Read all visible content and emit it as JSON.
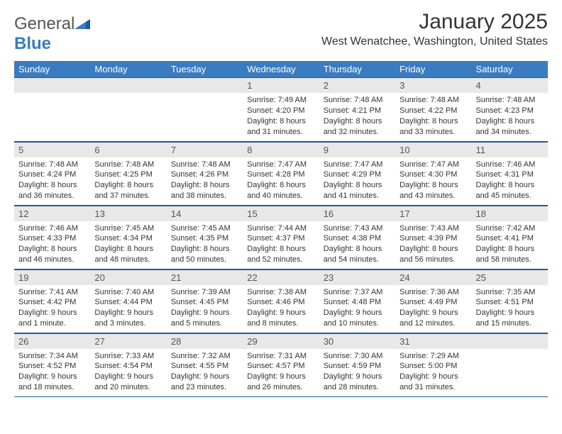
{
  "logo": {
    "text_gray": "General",
    "text_blue": "Blue"
  },
  "title": "January 2025",
  "location": "West Wenatchee, Washington, United States",
  "colors": {
    "header_bg": "#3b7bbf",
    "daynum_bg": "#e8e8e8",
    "rule": "#1e5a9a",
    "logo_blue": "#3b7bbf"
  },
  "weekdays": [
    "Sunday",
    "Monday",
    "Tuesday",
    "Wednesday",
    "Thursday",
    "Friday",
    "Saturday"
  ],
  "weeks": [
    [
      null,
      null,
      null,
      {
        "n": "1",
        "sr": "7:49 AM",
        "ss": "4:20 PM",
        "dl": "8 hours and 31 minutes."
      },
      {
        "n": "2",
        "sr": "7:48 AM",
        "ss": "4:21 PM",
        "dl": "8 hours and 32 minutes."
      },
      {
        "n": "3",
        "sr": "7:48 AM",
        "ss": "4:22 PM",
        "dl": "8 hours and 33 minutes."
      },
      {
        "n": "4",
        "sr": "7:48 AM",
        "ss": "4:23 PM",
        "dl": "8 hours and 34 minutes."
      }
    ],
    [
      {
        "n": "5",
        "sr": "7:48 AM",
        "ss": "4:24 PM",
        "dl": "8 hours and 36 minutes."
      },
      {
        "n": "6",
        "sr": "7:48 AM",
        "ss": "4:25 PM",
        "dl": "8 hours and 37 minutes."
      },
      {
        "n": "7",
        "sr": "7:48 AM",
        "ss": "4:26 PM",
        "dl": "8 hours and 38 minutes."
      },
      {
        "n": "8",
        "sr": "7:47 AM",
        "ss": "4:28 PM",
        "dl": "8 hours and 40 minutes."
      },
      {
        "n": "9",
        "sr": "7:47 AM",
        "ss": "4:29 PM",
        "dl": "8 hours and 41 minutes."
      },
      {
        "n": "10",
        "sr": "7:47 AM",
        "ss": "4:30 PM",
        "dl": "8 hours and 43 minutes."
      },
      {
        "n": "11",
        "sr": "7:46 AM",
        "ss": "4:31 PM",
        "dl": "8 hours and 45 minutes."
      }
    ],
    [
      {
        "n": "12",
        "sr": "7:46 AM",
        "ss": "4:33 PM",
        "dl": "8 hours and 46 minutes."
      },
      {
        "n": "13",
        "sr": "7:45 AM",
        "ss": "4:34 PM",
        "dl": "8 hours and 48 minutes."
      },
      {
        "n": "14",
        "sr": "7:45 AM",
        "ss": "4:35 PM",
        "dl": "8 hours and 50 minutes."
      },
      {
        "n": "15",
        "sr": "7:44 AM",
        "ss": "4:37 PM",
        "dl": "8 hours and 52 minutes."
      },
      {
        "n": "16",
        "sr": "7:43 AM",
        "ss": "4:38 PM",
        "dl": "8 hours and 54 minutes."
      },
      {
        "n": "17",
        "sr": "7:43 AM",
        "ss": "4:39 PM",
        "dl": "8 hours and 56 minutes."
      },
      {
        "n": "18",
        "sr": "7:42 AM",
        "ss": "4:41 PM",
        "dl": "8 hours and 58 minutes."
      }
    ],
    [
      {
        "n": "19",
        "sr": "7:41 AM",
        "ss": "4:42 PM",
        "dl": "9 hours and 1 minute."
      },
      {
        "n": "20",
        "sr": "7:40 AM",
        "ss": "4:44 PM",
        "dl": "9 hours and 3 minutes."
      },
      {
        "n": "21",
        "sr": "7:39 AM",
        "ss": "4:45 PM",
        "dl": "9 hours and 5 minutes."
      },
      {
        "n": "22",
        "sr": "7:38 AM",
        "ss": "4:46 PM",
        "dl": "9 hours and 8 minutes."
      },
      {
        "n": "23",
        "sr": "7:37 AM",
        "ss": "4:48 PM",
        "dl": "9 hours and 10 minutes."
      },
      {
        "n": "24",
        "sr": "7:36 AM",
        "ss": "4:49 PM",
        "dl": "9 hours and 12 minutes."
      },
      {
        "n": "25",
        "sr": "7:35 AM",
        "ss": "4:51 PM",
        "dl": "9 hours and 15 minutes."
      }
    ],
    [
      {
        "n": "26",
        "sr": "7:34 AM",
        "ss": "4:52 PM",
        "dl": "9 hours and 18 minutes."
      },
      {
        "n": "27",
        "sr": "7:33 AM",
        "ss": "4:54 PM",
        "dl": "9 hours and 20 minutes."
      },
      {
        "n": "28",
        "sr": "7:32 AM",
        "ss": "4:55 PM",
        "dl": "9 hours and 23 minutes."
      },
      {
        "n": "29",
        "sr": "7:31 AM",
        "ss": "4:57 PM",
        "dl": "9 hours and 26 minutes."
      },
      {
        "n": "30",
        "sr": "7:30 AM",
        "ss": "4:59 PM",
        "dl": "9 hours and 28 minutes."
      },
      {
        "n": "31",
        "sr": "7:29 AM",
        "ss": "5:00 PM",
        "dl": "9 hours and 31 minutes."
      },
      null
    ]
  ],
  "labels": {
    "sunrise": "Sunrise:",
    "sunset": "Sunset:",
    "daylight": "Daylight:"
  }
}
